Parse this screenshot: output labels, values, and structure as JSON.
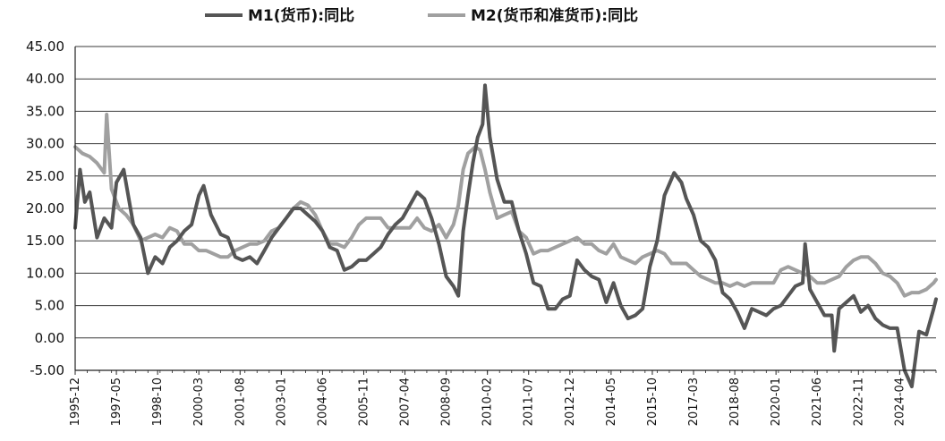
{
  "chart_data": {
    "type": "line",
    "title": "",
    "xlabel": "",
    "ylabel": "",
    "ylim": [
      -5,
      45
    ],
    "y_ticks": [
      "-5.00",
      "0.00",
      "5.00",
      "10.00",
      "15.00",
      "20.00",
      "25.00",
      "30.00",
      "35.00",
      "40.00",
      "45.00"
    ],
    "x_ticks": [
      "1995-12",
      "1997-05",
      "1998-10",
      "2000-03",
      "2001-08",
      "2003-01",
      "2004-06",
      "2005-11",
      "2007-04",
      "2008-09",
      "2010-02",
      "2011-07",
      "2012-12",
      "2014-05",
      "2015-10",
      "2017-03",
      "2018-08",
      "2020-01",
      "2021-06",
      "2022-11",
      "2024-04"
    ],
    "grid": true,
    "legend_position": "top",
    "series": [
      {
        "name": "M1(货币):同比",
        "color": "#555555",
        "points": [
          [
            "1995-12",
            17.0
          ],
          [
            "1996-02",
            26.0
          ],
          [
            "1996-04",
            21.0
          ],
          [
            "1996-06",
            22.5
          ],
          [
            "1996-09",
            15.5
          ],
          [
            "1996-12",
            18.5
          ],
          [
            "1997-03",
            17.0
          ],
          [
            "1997-05",
            24.0
          ],
          [
            "1997-08",
            26.0
          ],
          [
            "1997-12",
            17.5
          ],
          [
            "1998-03",
            15.5
          ],
          [
            "1998-06",
            10.0
          ],
          [
            "1998-09",
            12.5
          ],
          [
            "1998-12",
            11.5
          ],
          [
            "1999-03",
            14.0
          ],
          [
            "1999-06",
            15.0
          ],
          [
            "1999-09",
            16.5
          ],
          [
            "1999-12",
            17.5
          ],
          [
            "2000-03",
            22.0
          ],
          [
            "2000-05",
            23.5
          ],
          [
            "2000-08",
            19.0
          ],
          [
            "2000-12",
            16.0
          ],
          [
            "2001-03",
            15.5
          ],
          [
            "2001-06",
            12.5
          ],
          [
            "2001-09",
            12.0
          ],
          [
            "2001-12",
            12.5
          ],
          [
            "2002-03",
            11.5
          ],
          [
            "2002-06",
            13.5
          ],
          [
            "2002-09",
            15.5
          ],
          [
            "2002-12",
            17.0
          ],
          [
            "2003-03",
            18.5
          ],
          [
            "2003-06",
            20.0
          ],
          [
            "2003-09",
            20.0
          ],
          [
            "2003-12",
            19.0
          ],
          [
            "2004-03",
            18.0
          ],
          [
            "2004-06",
            16.5
          ],
          [
            "2004-09",
            14.0
          ],
          [
            "2004-12",
            13.5
          ],
          [
            "2005-03",
            10.5
          ],
          [
            "2005-06",
            11.0
          ],
          [
            "2005-09",
            12.0
          ],
          [
            "2005-12",
            12.0
          ],
          [
            "2006-03",
            13.0
          ],
          [
            "2006-06",
            14.0
          ],
          [
            "2006-09",
            16.0
          ],
          [
            "2006-12",
            17.5
          ],
          [
            "2007-03",
            18.5
          ],
          [
            "2007-06",
            20.5
          ],
          [
            "2007-09",
            22.5
          ],
          [
            "2007-12",
            21.5
          ],
          [
            "2008-03",
            18.5
          ],
          [
            "2008-06",
            14.5
          ],
          [
            "2008-09",
            9.5
          ],
          [
            "2008-12",
            8.0
          ],
          [
            "2009-02",
            6.5
          ],
          [
            "2009-04",
            16.5
          ],
          [
            "2009-06",
            22.0
          ],
          [
            "2009-08",
            27.0
          ],
          [
            "2009-10",
            31.0
          ],
          [
            "2009-12",
            33.0
          ],
          [
            "2010-01",
            39.0
          ],
          [
            "2010-03",
            31.0
          ],
          [
            "2010-06",
            24.5
          ],
          [
            "2010-09",
            21.0
          ],
          [
            "2010-12",
            21.0
          ],
          [
            "2011-03",
            16.5
          ],
          [
            "2011-06",
            13.0
          ],
          [
            "2011-09",
            8.5
          ],
          [
            "2011-12",
            8.0
          ],
          [
            "2012-03",
            4.5
          ],
          [
            "2012-06",
            4.5
          ],
          [
            "2012-09",
            6.0
          ],
          [
            "2012-12",
            6.5
          ],
          [
            "2013-03",
            12.0
          ],
          [
            "2013-06",
            10.5
          ],
          [
            "2013-09",
            9.5
          ],
          [
            "2013-12",
            9.0
          ],
          [
            "2014-03",
            5.5
          ],
          [
            "2014-06",
            8.5
          ],
          [
            "2014-09",
            5.0
          ],
          [
            "2014-12",
            3.0
          ],
          [
            "2015-03",
            3.5
          ],
          [
            "2015-06",
            4.5
          ],
          [
            "2015-09",
            11.0
          ],
          [
            "2015-12",
            15.0
          ],
          [
            "2016-03",
            22.0
          ],
          [
            "2016-07",
            25.5
          ],
          [
            "2016-10",
            24.0
          ],
          [
            "2016-12",
            21.5
          ],
          [
            "2017-03",
            19.0
          ],
          [
            "2017-06",
            15.0
          ],
          [
            "2017-09",
            14.0
          ],
          [
            "2017-12",
            12.0
          ],
          [
            "2018-03",
            7.0
          ],
          [
            "2018-06",
            6.0
          ],
          [
            "2018-09",
            4.0
          ],
          [
            "2018-12",
            1.5
          ],
          [
            "2019-03",
            4.5
          ],
          [
            "2019-06",
            4.0
          ],
          [
            "2019-09",
            3.5
          ],
          [
            "2019-12",
            4.5
          ],
          [
            "2020-03",
            5.0
          ],
          [
            "2020-06",
            6.5
          ],
          [
            "2020-09",
            8.0
          ],
          [
            "2020-12",
            8.5
          ],
          [
            "2021-01",
            14.5
          ],
          [
            "2021-03",
            7.5
          ],
          [
            "2021-06",
            5.5
          ],
          [
            "2021-09",
            3.5
          ],
          [
            "2021-12",
            3.5
          ],
          [
            "2022-01",
            -2.0
          ],
          [
            "2022-03",
            4.5
          ],
          [
            "2022-06",
            5.5
          ],
          [
            "2022-09",
            6.5
          ],
          [
            "2022-12",
            4.0
          ],
          [
            "2023-03",
            5.0
          ],
          [
            "2023-06",
            3.0
          ],
          [
            "2023-09",
            2.0
          ],
          [
            "2023-12",
            1.5
          ],
          [
            "2024-03",
            1.5
          ],
          [
            "2024-06",
            -5.0
          ],
          [
            "2024-09",
            -7.5
          ],
          [
            "2024-12",
            1.0
          ],
          [
            "2025-03",
            0.5
          ],
          [
            "2025-06",
            4.5
          ],
          [
            "2025-07",
            6.0
          ]
        ]
      },
      {
        "name": "M2(货币和准货币):同比",
        "color": "#a0a0a0",
        "points": [
          [
            "1995-12",
            29.5
          ],
          [
            "1996-03",
            28.5
          ],
          [
            "1996-06",
            28.0
          ],
          [
            "1996-09",
            27.0
          ],
          [
            "1996-12",
            25.5
          ],
          [
            "1997-01",
            34.5
          ],
          [
            "1997-03",
            23.0
          ],
          [
            "1997-06",
            20.0
          ],
          [
            "1997-09",
            19.0
          ],
          [
            "1997-12",
            17.5
          ],
          [
            "1998-03",
            15.0
          ],
          [
            "1998-06",
            15.5
          ],
          [
            "1998-09",
            16.0
          ],
          [
            "1998-12",
            15.5
          ],
          [
            "1999-03",
            17.0
          ],
          [
            "1999-06",
            16.5
          ],
          [
            "1999-09",
            14.5
          ],
          [
            "1999-12",
            14.5
          ],
          [
            "2000-03",
            13.5
          ],
          [
            "2000-06",
            13.5
          ],
          [
            "2000-09",
            13.0
          ],
          [
            "2000-12",
            12.5
          ],
          [
            "2001-03",
            12.5
          ],
          [
            "2001-06",
            13.5
          ],
          [
            "2001-09",
            14.0
          ],
          [
            "2001-12",
            14.5
          ],
          [
            "2002-03",
            14.5
          ],
          [
            "2002-06",
            15.0
          ],
          [
            "2002-09",
            16.5
          ],
          [
            "2002-12",
            17.0
          ],
          [
            "2003-03",
            18.5
          ],
          [
            "2003-06",
            20.0
          ],
          [
            "2003-09",
            21.0
          ],
          [
            "2003-12",
            20.5
          ],
          [
            "2004-03",
            19.0
          ],
          [
            "2004-06",
            16.5
          ],
          [
            "2004-09",
            14.5
          ],
          [
            "2004-12",
            14.5
          ],
          [
            "2005-03",
            14.0
          ],
          [
            "2005-06",
            15.5
          ],
          [
            "2005-09",
            17.5
          ],
          [
            "2005-12",
            18.5
          ],
          [
            "2006-03",
            18.5
          ],
          [
            "2006-06",
            18.5
          ],
          [
            "2006-09",
            17.0
          ],
          [
            "2006-12",
            17.0
          ],
          [
            "2007-03",
            17.0
          ],
          [
            "2007-06",
            17.0
          ],
          [
            "2007-09",
            18.5
          ],
          [
            "2007-12",
            17.0
          ],
          [
            "2008-03",
            16.5
          ],
          [
            "2008-06",
            17.5
          ],
          [
            "2008-09",
            15.5
          ],
          [
            "2008-12",
            17.5
          ],
          [
            "2009-02",
            20.5
          ],
          [
            "2009-04",
            26.0
          ],
          [
            "2009-06",
            28.5
          ],
          [
            "2009-09",
            29.5
          ],
          [
            "2009-11",
            29.0
          ],
          [
            "2010-01",
            26.0
          ],
          [
            "2010-03",
            22.5
          ],
          [
            "2010-06",
            18.5
          ],
          [
            "2010-09",
            19.0
          ],
          [
            "2010-12",
            19.5
          ],
          [
            "2011-03",
            16.5
          ],
          [
            "2011-06",
            15.5
          ],
          [
            "2011-09",
            13.0
          ],
          [
            "2011-12",
            13.5
          ],
          [
            "2012-03",
            13.5
          ],
          [
            "2012-06",
            14.0
          ],
          [
            "2012-09",
            14.5
          ],
          [
            "2012-12",
            15.0
          ],
          [
            "2013-03",
            15.5
          ],
          [
            "2013-06",
            14.5
          ],
          [
            "2013-09",
            14.5
          ],
          [
            "2013-12",
            13.5
          ],
          [
            "2014-03",
            13.0
          ],
          [
            "2014-06",
            14.5
          ],
          [
            "2014-09",
            12.5
          ],
          [
            "2014-12",
            12.0
          ],
          [
            "2015-03",
            11.5
          ],
          [
            "2015-06",
            12.5
          ],
          [
            "2015-09",
            13.0
          ],
          [
            "2015-12",
            13.5
          ],
          [
            "2016-03",
            13.0
          ],
          [
            "2016-06",
            11.5
          ],
          [
            "2016-09",
            11.5
          ],
          [
            "2016-12",
            11.5
          ],
          [
            "2017-03",
            10.5
          ],
          [
            "2017-06",
            9.5
          ],
          [
            "2017-09",
            9.0
          ],
          [
            "2017-12",
            8.5
          ],
          [
            "2018-03",
            8.5
          ],
          [
            "2018-06",
            8.0
          ],
          [
            "2018-09",
            8.5
          ],
          [
            "2018-12",
            8.0
          ],
          [
            "2019-03",
            8.5
          ],
          [
            "2019-06",
            8.5
          ],
          [
            "2019-09",
            8.5
          ],
          [
            "2019-12",
            8.5
          ],
          [
            "2020-03",
            10.5
          ],
          [
            "2020-06",
            11.0
          ],
          [
            "2020-09",
            10.5
          ],
          [
            "2020-12",
            10.0
          ],
          [
            "2021-03",
            9.5
          ],
          [
            "2021-06",
            8.5
          ],
          [
            "2021-09",
            8.5
          ],
          [
            "2021-12",
            9.0
          ],
          [
            "2022-03",
            9.5
          ],
          [
            "2022-06",
            11.0
          ],
          [
            "2022-09",
            12.0
          ],
          [
            "2022-12",
            12.5
          ],
          [
            "2023-03",
            12.5
          ],
          [
            "2023-06",
            11.5
          ],
          [
            "2023-09",
            10.0
          ],
          [
            "2023-12",
            9.5
          ],
          [
            "2024-03",
            8.5
          ],
          [
            "2024-06",
            6.5
          ],
          [
            "2024-09",
            7.0
          ],
          [
            "2024-12",
            7.0
          ],
          [
            "2025-03",
            7.5
          ],
          [
            "2025-06",
            8.5
          ],
          [
            "2025-07",
            9.0
          ]
        ]
      }
    ]
  }
}
